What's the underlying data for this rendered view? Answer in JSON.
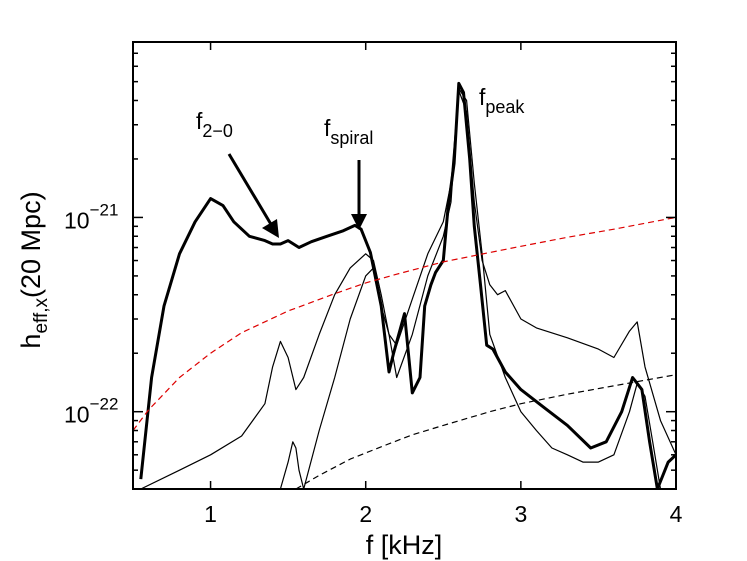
{
  "chart_data": {
    "type": "line",
    "title": "",
    "xlabel": "f [kHz]",
    "ylabel": {
      "base": "h",
      "sub": "eff,x",
      "rest": "(20 Mpc)"
    },
    "xlim": [
      0.5,
      4.0
    ],
    "ylim": [
      4e-23,
      8e-21
    ],
    "yscale": "log",
    "grid": false,
    "legend": "none",
    "x_ticks": [
      {
        "value": 1,
        "label": "1"
      },
      {
        "value": 2,
        "label": "2"
      },
      {
        "value": 3,
        "label": "3"
      },
      {
        "value": 4,
        "label": "4"
      }
    ],
    "y_ticks": [
      {
        "value": 1e-22,
        "base": "10",
        "exp": "−22"
      },
      {
        "value": 1e-21,
        "base": "10",
        "exp": "−21"
      }
    ],
    "series": [
      {
        "style": "solid",
        "width": 3,
        "color": "#000000",
        "x": [
          0.55,
          0.62,
          0.7,
          0.8,
          0.9,
          1.0,
          1.08,
          1.15,
          1.25,
          1.35,
          1.4,
          1.45,
          1.5,
          1.57,
          1.65,
          1.75,
          1.85,
          1.93,
          1.97,
          2.03,
          2.1,
          2.15,
          2.18,
          2.25,
          2.3,
          2.35,
          2.38,
          2.42,
          2.45,
          2.5,
          2.53,
          2.57,
          2.6,
          2.63,
          2.67,
          2.7,
          2.74,
          2.78,
          2.82,
          2.9,
          3.0,
          3.15,
          3.3,
          3.45,
          3.55,
          3.65,
          3.72,
          3.78,
          3.83,
          3.88,
          3.95,
          4.0
        ],
        "y": [
          4.5e-23,
          1.5e-22,
          3.5e-22,
          6.5e-22,
          9.5e-22,
          1.25e-21,
          1.15e-21,
          9.5e-22,
          8e-22,
          7.6e-22,
          7.3e-22,
          7.3e-22,
          7.6e-22,
          7e-22,
          7.5e-22,
          8e-22,
          8.5e-22,
          9.1e-22,
          8.7e-22,
          6.6e-22,
          3.5e-22,
          1.6e-22,
          2e-22,
          3.2e-22,
          1.25e-22,
          1.5e-22,
          3.5e-22,
          4.5e-22,
          5.2e-22,
          6e-22,
          1.1e-21,
          1.9e-21,
          4.9e-21,
          4.4e-21,
          2e-21,
          9e-22,
          4.5e-22,
          2.2e-22,
          2.1e-22,
          1.6e-22,
          1.3e-22,
          1.05e-22,
          8.5e-23,
          6.5e-23,
          7e-23,
          1e-22,
          1.5e-22,
          1.3e-22,
          7e-23,
          4e-23,
          5.5e-23,
          6e-23
        ]
      },
      {
        "style": "solid",
        "width": 1.2,
        "color": "#000000",
        "x": [
          0.55,
          0.8,
          1.0,
          1.2,
          1.35,
          1.4,
          1.45,
          1.5,
          1.55,
          1.6,
          1.7,
          1.8,
          1.9,
          2.0,
          2.05,
          2.1,
          2.15,
          2.2,
          2.3,
          2.4,
          2.5,
          2.55,
          2.6,
          2.65,
          2.7,
          2.75,
          2.8,
          2.85,
          2.9,
          3.0,
          3.1,
          3.3,
          3.5,
          3.6,
          3.7,
          3.75,
          3.8,
          3.9,
          4.0
        ],
        "y": [
          4e-23,
          5e-23,
          6e-23,
          7.5e-23,
          1.1e-22,
          1.7e-22,
          2.3e-22,
          1.9e-22,
          1.3e-22,
          1.5e-22,
          2.5e-22,
          4e-22,
          5.5e-22,
          6.5e-22,
          6e-22,
          4e-22,
          2.5e-22,
          2.2e-22,
          3.8e-22,
          6.5e-22,
          9.5e-22,
          1.5e-21,
          4.5e-21,
          3.5e-21,
          1.2e-21,
          6e-22,
          4.5e-22,
          4e-22,
          4.2e-22,
          3e-22,
          2.7e-22,
          2.4e-22,
          2.1e-22,
          1.9e-22,
          2.6e-22,
          2.9e-22,
          1.7e-22,
          9e-23,
          6e-23
        ]
      },
      {
        "style": "solid",
        "width": 1.2,
        "color": "#000000",
        "x": [
          1.45,
          1.5,
          1.53,
          1.55,
          1.57,
          1.6,
          1.7,
          1.8,
          1.9,
          2.0,
          2.05,
          2.1,
          2.15,
          2.2,
          2.3,
          2.4,
          2.5,
          2.55,
          2.6,
          2.65,
          2.7,
          2.75,
          2.8,
          2.9,
          3.0,
          3.1,
          3.2,
          3.3,
          3.4,
          3.5,
          3.6,
          3.7,
          3.75,
          3.8,
          3.85,
          3.9
        ],
        "y": [
          4e-23,
          5.5e-23,
          7e-23,
          6.5e-23,
          5e-23,
          4e-23,
          8e-23,
          1.5e-22,
          3e-22,
          5e-22,
          5.5e-22,
          3.5e-22,
          2.5e-22,
          1.5e-22,
          2.5e-22,
          5e-22,
          8e-22,
          1.2e-21,
          4.6e-21,
          4e-21,
          1.5e-21,
          6.5e-22,
          2.5e-22,
          1.5e-22,
          1e-22,
          8e-23,
          6.5e-23,
          6e-23,
          5.5e-23,
          5.5e-23,
          6e-23,
          1e-22,
          1.4e-22,
          1.2e-22,
          7e-23,
          4e-23
        ]
      },
      {
        "style": "dashed",
        "width": 1.2,
        "color": "#dd0000",
        "x": [
          0.5,
          0.6,
          0.8,
          1.0,
          1.2,
          1.5,
          1.8,
          2.0,
          2.2,
          2.5,
          2.8,
          3.0,
          3.3,
          3.6,
          4.0
        ],
        "y": [
          8e-23,
          1.02e-22,
          1.5e-22,
          2e-22,
          2.55e-22,
          3.3e-22,
          4.05e-22,
          4.6e-22,
          5.1e-22,
          5.9e-22,
          6.6e-22,
          7.1e-22,
          7.9e-22,
          8.7e-22,
          1e-21
        ]
      },
      {
        "style": "dashed",
        "width": 1.2,
        "color": "#000000",
        "x": [
          1.55,
          1.7,
          1.9,
          2.1,
          2.3,
          2.5,
          2.8,
          3.0,
          3.3,
          3.6,
          4.0
        ],
        "y": [
          4e-23,
          4.7e-23,
          5.7e-23,
          6.6e-23,
          7.6e-23,
          8.5e-23,
          1e-22,
          1.1e-22,
          1.23e-22,
          1.36e-22,
          1.55e-22
        ]
      }
    ],
    "annotations": [
      {
        "base": "f",
        "sub": "2−0",
        "arrow_to": [
          1.45,
          8.3e-22
        ]
      },
      {
        "base": "f",
        "sub": "spiral",
        "arrow_to": [
          1.97,
          9e-22
        ]
      },
      {
        "base": "f",
        "sub": "peak",
        "arrow_to": null
      }
    ]
  }
}
